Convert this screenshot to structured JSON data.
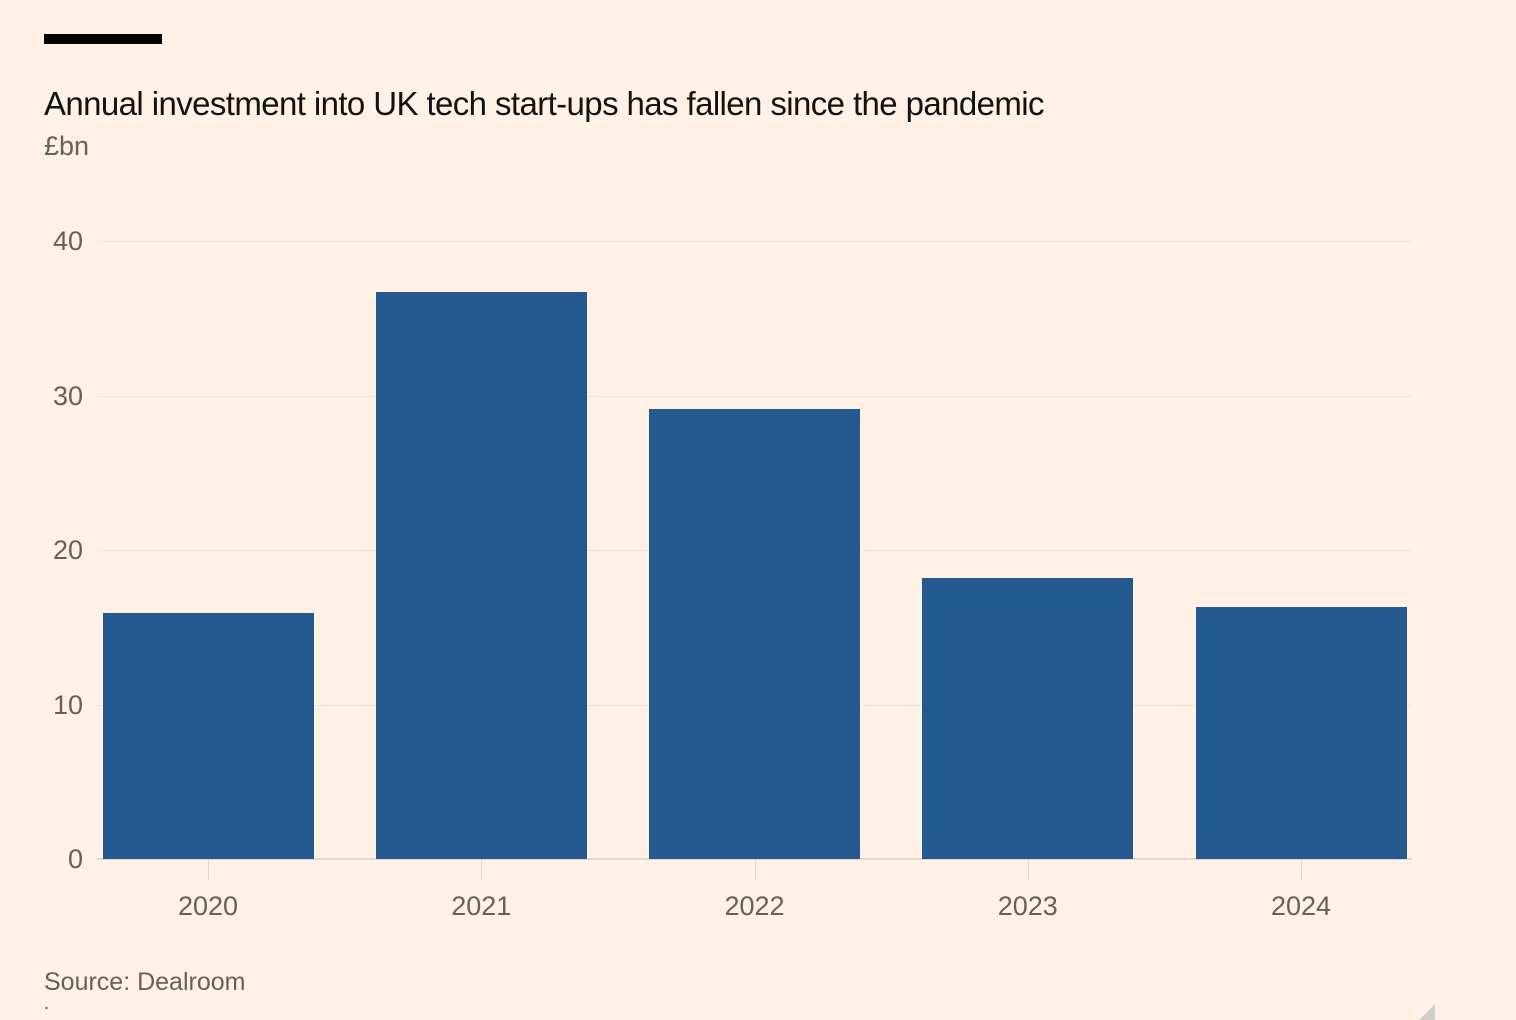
{
  "header": {
    "title": "Annual investment into UK tech start-ups has fallen since the pandemic",
    "subtitle": "£bn"
  },
  "footer": {
    "source": "Source: Dealroom",
    "cropped_char": "."
  },
  "colors": {
    "background": "#fff1e5",
    "bar": "#24598f",
    "title_text": "#121212",
    "muted_text": "#66605c",
    "gridline": "#f3e3d3",
    "axis_line": "#e4d6c8",
    "top_rule": "#000000",
    "resize_handle": "#cfcfcf"
  },
  "chart_data": {
    "type": "bar",
    "categories": [
      "2020",
      "2021",
      "2022",
      "2023",
      "2024"
    ],
    "values": [
      15.9,
      36.7,
      29.1,
      18.2,
      16.3
    ],
    "title": "Annual investment into UK tech start-ups has fallen since the pandemic",
    "xlabel": "",
    "ylabel": "£bn",
    "ylim": [
      0,
      40
    ],
    "yticks": [
      0,
      10,
      20,
      30,
      40
    ],
    "grid": true,
    "legend": false,
    "source": "Dealroom"
  }
}
